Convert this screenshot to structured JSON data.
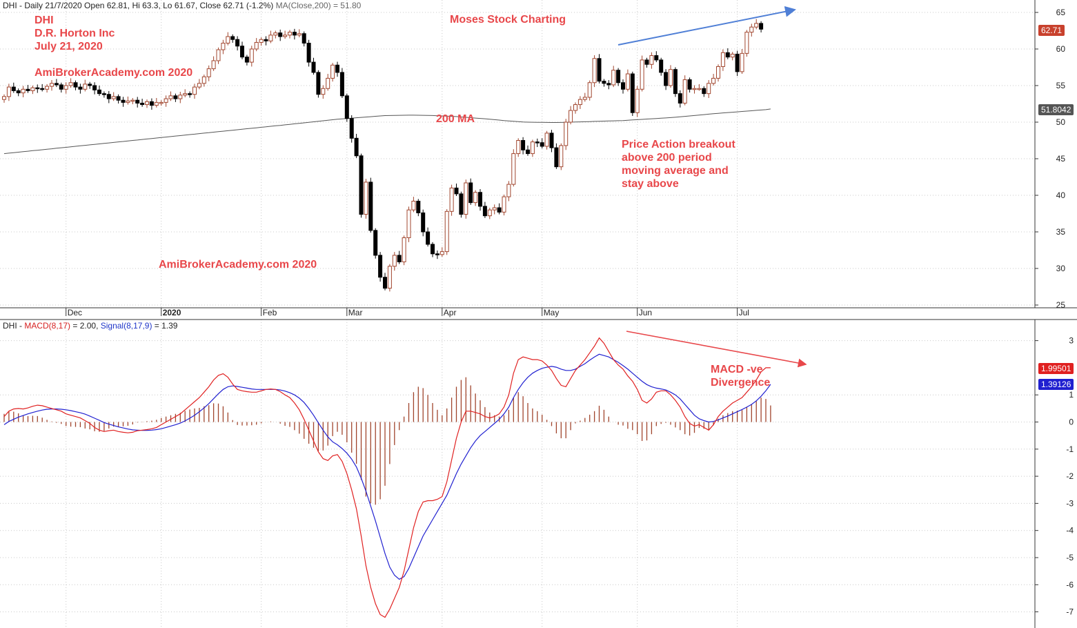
{
  "header": {
    "price_symbol": "DHI",
    "price_info": " - Daily 21/7/2020 Open 62.81, Hi 63.3, Lo 61.67, Close 62.71 (-1.2%) ",
    "ma_label": "MA(Close,200) = 51.80",
    "macd_symbol": "DHI",
    "macd_sep": " - ",
    "macd_label": "MACD(8,17)",
    "macd_value": " = 2.00, ",
    "signal_label": "Signal(8,17,9)",
    "signal_value": " = 1.39"
  },
  "annotations": {
    "symbol": "DHI",
    "company": "D.R. Horton Inc",
    "date": "July 21, 2020",
    "brand1": "AmiBrokerAcademy.com  2020",
    "brand2": "AmiBrokerAcademy.com  2020",
    "title": "Moses Stock Charting",
    "ma_note": "200 MA",
    "breakout_l1": "Price Action breakout",
    "breakout_l2": "above 200 period",
    "breakout_l3": "moving average and",
    "breakout_l4": "stay above",
    "div_l1": "MACD -ve",
    "div_l2": "Divergence"
  },
  "tags": {
    "close": "62.71",
    "ma": "51.8042",
    "macd": "1.99501",
    "signal": "1.39126"
  },
  "colors": {
    "up_candle": "#a0442c",
    "down_candle": "#000000",
    "ma_line": "#555555",
    "macd_line": "#e02020",
    "signal_line": "#2020d0",
    "histogram": "#a0442c",
    "annotation": "#e8474a",
    "arrow_blue": "#4f7fd6",
    "arrow_red": "#e8474a"
  },
  "chart_data": [
    {
      "type": "candlestick",
      "title": "DHI",
      "ylim": [
        24,
        66
      ],
      "yticks": [
        25,
        30,
        35,
        40,
        45,
        50,
        55,
        60,
        65
      ],
      "month_ticks": [
        {
          "label": "Dec",
          "bold": false,
          "index": 13
        },
        {
          "label": "2020",
          "bold": true,
          "index": 33
        },
        {
          "label": "Feb",
          "bold": false,
          "index": 54
        },
        {
          "label": "Mar",
          "bold": false,
          "index": 72
        },
        {
          "label": "Apr",
          "bold": false,
          "index": 92
        },
        {
          "label": "May",
          "bold": false,
          "index": 113
        },
        {
          "label": "Jun",
          "bold": false,
          "index": 133
        },
        {
          "label": "Jul",
          "bold": false,
          "index": 154
        }
      ],
      "close": [
        53.5,
        54.8,
        54.3,
        54.0,
        54.5,
        54.3,
        54.7,
        54.6,
        54.5,
        54.9,
        55.3,
        55.1,
        54.5,
        55.0,
        55.4,
        54.8,
        54.5,
        55.2,
        55.0,
        54.4,
        53.9,
        53.8,
        53.2,
        53.5,
        53.0,
        52.7,
        52.9,
        53.0,
        52.6,
        52.4,
        52.8,
        52.3,
        52.7,
        52.7,
        53.2,
        53.6,
        53.2,
        53.7,
        53.9,
        53.8,
        54.8,
        55.3,
        56.2,
        57.3,
        58.4,
        59.9,
        60.8,
        61.7,
        61.3,
        60.4,
        58.9,
        58.2,
        60.0,
        60.9,
        61.3,
        61.1,
        61.9,
        62.2,
        61.7,
        61.9,
        62.3,
        61.9,
        62.1,
        60.8,
        58.2,
        56.8,
        53.8,
        54.6,
        56.0,
        57.8,
        56.8,
        53.6,
        50.5,
        47.8,
        45.4,
        37.4,
        41.8,
        35.2,
        31.8,
        28.8,
        27.3,
        30.3,
        31.8,
        30.9,
        34.2,
        38.0,
        39.2,
        37.6,
        35.0,
        33.3,
        32.0,
        31.9,
        32.3,
        37.8,
        41.0,
        40.2,
        37.4,
        41.7,
        39.0,
        40.4,
        38.5,
        37.2,
        38.0,
        38.3,
        37.7,
        39.8,
        41.5,
        45.7,
        47.5,
        46.2,
        45.7,
        47.3,
        47.2,
        46.7,
        48.5,
        46.5,
        43.9,
        46.8,
        50.0,
        51.6,
        52.4,
        53.1,
        53.4,
        55.4,
        58.7,
        55.6,
        55.3,
        55.1,
        57.1,
        55.4,
        54.5,
        56.6,
        51.3,
        54.5,
        58.5,
        57.9,
        59.1,
        58.5,
        56.8,
        55.0,
        57.2,
        53.9,
        52.6,
        55.8,
        54.5,
        54.6,
        54.6,
        53.9,
        55.3,
        56.0,
        57.6,
        59.5,
        58.9,
        59.3,
        56.9,
        59.4,
        62.3,
        63.0,
        63.5,
        62.71
      ],
      "ma200": [
        45.7,
        45.76,
        45.83,
        45.9,
        45.96,
        46.03,
        46.1,
        46.16,
        46.23,
        46.3,
        46.36,
        46.43,
        46.5,
        46.56,
        46.63,
        46.7,
        46.76,
        46.83,
        46.9,
        46.96,
        47.03,
        47.1,
        47.16,
        47.23,
        47.3,
        47.36,
        47.43,
        47.5,
        47.56,
        47.63,
        47.7,
        47.76,
        47.83,
        47.9,
        47.96,
        48.03,
        48.1,
        48.16,
        48.23,
        48.3,
        48.36,
        48.43,
        48.5,
        48.56,
        48.63,
        48.7,
        48.76,
        48.83,
        48.9,
        48.96,
        49.03,
        49.1,
        49.16,
        49.23,
        49.3,
        49.36,
        49.43,
        49.5,
        49.56,
        49.63,
        49.7,
        49.77,
        49.84,
        49.91,
        49.98,
        50.05,
        50.12,
        50.19,
        50.26,
        50.33,
        50.4,
        50.45,
        50.5,
        50.55,
        50.6,
        50.65,
        50.7,
        50.75,
        50.8,
        50.85,
        50.9,
        50.91,
        50.92,
        50.93,
        50.94,
        50.95,
        50.95,
        50.94,
        50.93,
        50.92,
        50.91,
        50.88,
        50.85,
        50.82,
        50.79,
        50.76,
        50.71,
        50.66,
        50.61,
        50.56,
        50.51,
        50.46,
        50.4,
        50.34,
        50.28,
        50.22,
        50.17,
        50.12,
        50.07,
        50.02,
        50.0,
        49.99,
        49.98,
        49.97,
        49.96,
        49.95,
        49.95,
        49.96,
        49.98,
        50.0,
        50.02,
        50.04,
        50.06,
        50.08,
        50.1,
        50.12,
        50.14,
        50.16,
        50.18,
        50.2,
        50.22,
        50.26,
        50.3,
        50.34,
        50.38,
        50.42,
        50.46,
        50.5,
        50.54,
        50.58,
        50.62,
        50.67,
        50.73,
        50.79,
        50.85,
        50.91,
        50.97,
        51.03,
        51.09,
        51.15,
        51.21,
        51.26,
        51.31,
        51.36,
        51.41,
        51.46,
        51.51,
        51.56,
        51.61,
        51.66,
        51.71,
        51.8
      ]
    },
    {
      "type": "macd",
      "title": "DHI - MACD(8,17) = 2.00, Signal(8,17,9) = 1.39",
      "ylim": [
        -7.4,
        3.4
      ],
      "yticks": [
        3,
        1,
        0,
        -1,
        -2,
        -3,
        -4,
        -5,
        -6,
        -7
      ],
      "macd": [
        0.2,
        0.4,
        0.48,
        0.5,
        0.48,
        0.52,
        0.58,
        0.62,
        0.6,
        0.55,
        0.5,
        0.45,
        0.4,
        0.3,
        0.25,
        0.2,
        0.15,
        0.05,
        -0.05,
        -0.2,
        -0.3,
        -0.35,
        -0.32,
        -0.3,
        -0.35,
        -0.38,
        -0.4,
        -0.38,
        -0.32,
        -0.3,
        -0.28,
        -0.25,
        -0.2,
        -0.1,
        0.0,
        0.1,
        0.2,
        0.3,
        0.45,
        0.6,
        0.75,
        0.9,
        1.1,
        1.3,
        1.55,
        1.72,
        1.78,
        1.65,
        1.4,
        1.2,
        1.15,
        1.12,
        1.1,
        1.1,
        1.15,
        1.2,
        1.22,
        1.2,
        1.12,
        1.0,
        0.9,
        0.7,
        0.45,
        0.1,
        -0.3,
        -0.7,
        -1.1,
        -1.35,
        -1.42,
        -1.25,
        -1.2,
        -1.45,
        -1.9,
        -2.5,
        -3.2,
        -4.2,
        -5.3,
        -6.1,
        -6.7,
        -7.1,
        -7.2,
        -6.9,
        -6.5,
        -6.1,
        -5.5,
        -4.7,
        -3.9,
        -3.3,
        -2.95,
        -2.9,
        -2.9,
        -2.85,
        -2.75,
        -2.2,
        -1.4,
        -0.6,
        0.0,
        0.4,
        0.4,
        0.35,
        0.3,
        0.2,
        0.15,
        0.2,
        0.3,
        0.55,
        1.0,
        1.8,
        2.3,
        2.4,
        2.35,
        2.3,
        2.3,
        2.25,
        2.1,
        1.9,
        1.6,
        1.35,
        1.3,
        1.6,
        1.9,
        2.1,
        2.3,
        2.55,
        2.8,
        3.1,
        2.9,
        2.6,
        2.3,
        2.1,
        1.95,
        1.7,
        1.5,
        1.2,
        0.8,
        0.7,
        0.85,
        1.1,
        1.15,
        1.15,
        1.0,
        0.8,
        0.55,
        0.2,
        -0.05,
        -0.15,
        -0.1,
        -0.2,
        -0.3,
        -0.1,
        0.2,
        0.4,
        0.55,
        0.7,
        0.8,
        0.9,
        1.1,
        1.3,
        1.55,
        1.85,
        2.0,
        2.0
      ],
      "signal": [
        -0.1,
        0.02,
        0.1,
        0.18,
        0.24,
        0.3,
        0.35,
        0.4,
        0.44,
        0.47,
        0.48,
        0.48,
        0.47,
        0.45,
        0.42,
        0.38,
        0.34,
        0.29,
        0.22,
        0.14,
        0.06,
        -0.02,
        -0.08,
        -0.13,
        -0.18,
        -0.22,
        -0.26,
        -0.29,
        -0.3,
        -0.31,
        -0.31,
        -0.3,
        -0.28,
        -0.25,
        -0.2,
        -0.15,
        -0.1,
        -0.04,
        0.04,
        0.14,
        0.25,
        0.38,
        0.52,
        0.68,
        0.86,
        1.04,
        1.2,
        1.3,
        1.33,
        1.31,
        1.28,
        1.25,
        1.22,
        1.2,
        1.2,
        1.2,
        1.2,
        1.2,
        1.18,
        1.14,
        1.08,
        1.0,
        0.88,
        0.72,
        0.5,
        0.25,
        -0.03,
        -0.3,
        -0.55,
        -0.73,
        -0.84,
        -0.98,
        -1.15,
        -1.37,
        -1.66,
        -2.07,
        -2.55,
        -3.1,
        -3.65,
        -4.25,
        -4.85,
        -5.35,
        -5.65,
        -5.8,
        -5.7,
        -5.4,
        -5.0,
        -4.6,
        -4.2,
        -3.9,
        -3.6,
        -3.3,
        -3.0,
        -2.7,
        -2.3,
        -1.9,
        -1.55,
        -1.25,
        -0.95,
        -0.7,
        -0.5,
        -0.35,
        -0.2,
        -0.05,
        0.1,
        0.3,
        0.55,
        0.9,
        1.2,
        1.45,
        1.65,
        1.8,
        1.9,
        1.98,
        2.02,
        2.05,
        2.02,
        1.95,
        1.9,
        1.9,
        1.95,
        2.05,
        2.15,
        2.28,
        2.4,
        2.5,
        2.45,
        2.4,
        2.3,
        2.2,
        2.08,
        1.95,
        1.8,
        1.65,
        1.5,
        1.38,
        1.3,
        1.25,
        1.22,
        1.18,
        1.1,
        1.0,
        0.85,
        0.65,
        0.45,
        0.25,
        0.12,
        0.05,
        0.0,
        0.02,
        0.08,
        0.15,
        0.22,
        0.3,
        0.38,
        0.46,
        0.55,
        0.65,
        0.78,
        0.95,
        1.15,
        1.39
      ]
    }
  ]
}
